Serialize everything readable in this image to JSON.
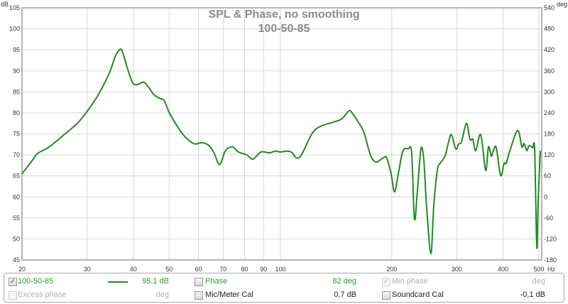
{
  "chart_data": {
    "type": "line",
    "title": "SPL & Phase, no smoothing",
    "subtitle": "100-50-85",
    "xlabel": "Hz",
    "ylabel": "dB",
    "y2label": "deg",
    "xscale": "log",
    "xlim": [
      20,
      509
    ],
    "ylim": [
      45,
      105
    ],
    "y2lim": [
      -180,
      540
    ],
    "grid": true,
    "xticks": [
      20,
      30,
      40,
      50,
      60,
      70,
      80,
      90,
      100,
      200,
      300,
      400,
      500
    ],
    "xtick_labels": [
      "20",
      "30",
      "40",
      "50",
      "60",
      "70",
      "80",
      "90",
      "100",
      "200",
      "300",
      "400",
      "500"
    ],
    "yticks": [
      "105",
      "100",
      "95",
      "90",
      "85",
      "80",
      "75",
      "70",
      "65",
      "60",
      "55",
      "50",
      "45"
    ],
    "y2ticks": [
      "540",
      "480",
      "420",
      "360",
      "300",
      "240",
      "180",
      "120",
      "60",
      "0",
      "-60",
      "-120",
      "-180"
    ],
    "series": [
      {
        "name": "100-50-85",
        "color": "#1e8c1e",
        "x": [
          20.0,
          21.2,
          22.1,
          23.7,
          25.9,
          28.3,
          30.2,
          32.3,
          34.5,
          35.7,
          36.7,
          37.3,
          38.5,
          39.7,
          40.6,
          41.5,
          42.7,
          44.0,
          45.4,
          47.0,
          48.5,
          50.2,
          53.7,
          56.1,
          58.7,
          61.3,
          64.1,
          66.1,
          68.5,
          71.0,
          74.2,
          76.9,
          81.1,
          84.3,
          88.6,
          93.4,
          96.8,
          100,
          104.3,
          107.6,
          110.5,
          114.0,
          121.8,
          128.4,
          139.1,
          146.7,
          153.3,
          156.8,
          162.4,
          168.3,
          175.1,
          181.4,
          189.6,
          193.8,
          199.1,
          203.6,
          209.1,
          214.6,
          221.4,
          226.4,
          230.4,
          234.6,
          239.8,
          244.2,
          248.5,
          255.2,
          259.8,
          265.6,
          270.3,
          278.7,
          285.0,
          290.2,
          298.0,
          303.3,
          308.8,
          318.5,
          325.5,
          331.4,
          337.4,
          348.1,
          358.9,
          365.3,
          371.8,
          376.7,
          383.6,
          393.9,
          402.7,
          408.0,
          417.1,
          438.0,
          449.8,
          455.8,
          464.0,
          470.2,
          480.8,
          487.1,
          493.6,
          498.0,
          504.6
        ],
        "y": [
          65.5,
          68.4,
          70.4,
          71.9,
          74.7,
          77.6,
          80.7,
          84.6,
          89.6,
          93.3,
          95.0,
          94.7,
          90.8,
          87.4,
          86.7,
          86.9,
          87.3,
          86.1,
          84.4,
          83.5,
          82.9,
          79.8,
          75.6,
          73.7,
          72.6,
          72.9,
          72.2,
          70.5,
          67.7,
          71.0,
          71.9,
          70.7,
          70.0,
          69.0,
          70.7,
          70.5,
          70.9,
          70.7,
          70.9,
          70.5,
          69.3,
          70.0,
          75.1,
          76.8,
          77.8,
          78.6,
          80.5,
          79.8,
          77.8,
          75.3,
          70.0,
          68.3,
          69.3,
          69.3,
          65.6,
          61.2,
          66.3,
          71.0,
          71.4,
          70.5,
          54.8,
          61.2,
          71.4,
          68.8,
          57.8,
          46.5,
          57.8,
          66.3,
          68.0,
          69.7,
          73.1,
          74.8,
          71.4,
          72.6,
          73.1,
          77.5,
          73.7,
          73.7,
          71.0,
          74.8,
          66.3,
          71.9,
          69.7,
          71.0,
          71.7,
          65.1,
          68.0,
          68.0,
          70.9,
          75.8,
          71.9,
          72.7,
          71.0,
          72.2,
          71.7,
          71.0,
          48.0,
          59.5,
          71.0
        ]
      }
    ]
  },
  "legend": {
    "row1": {
      "trace_checked": true,
      "trace_label": "100-50-85",
      "trace_value": "95,1 dB",
      "phase_checked": false,
      "phase_label": "Phase",
      "phase_value": "82 deg",
      "minphase_checked": true,
      "minphase_label": "Min phase",
      "minphase_value": "deg"
    },
    "row2": {
      "excess_checked": false,
      "excess_label": "Excess phase",
      "excess_value": "deg",
      "mic_checked": false,
      "mic_label": "Mic/Meter Cal",
      "mic_value": "0,7 dB",
      "sc_checked": false,
      "sc_label": "Soundcard Cal",
      "sc_value": "-0,1 dB"
    },
    "colors": {
      "active": "#2aa02a",
      "disabled": "#b0b0b0",
      "trace": "#1e8c1e"
    }
  }
}
